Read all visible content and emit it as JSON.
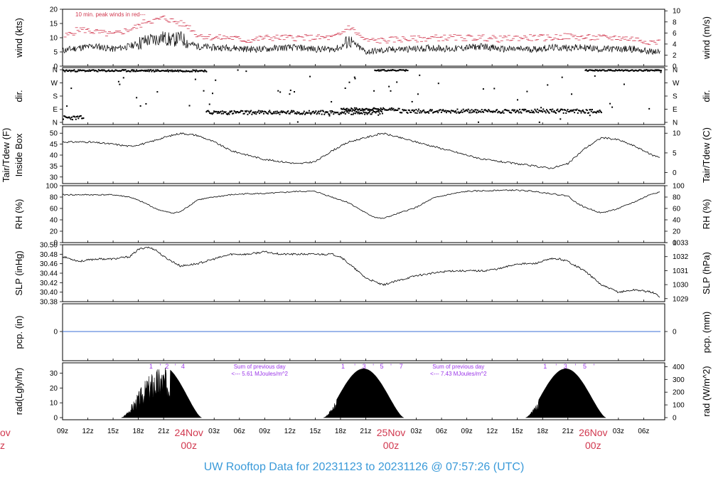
{
  "footer": {
    "title": "UW Rooftop Data for 20231123  to  20231126 @ 07:57:26  (UTC)"
  },
  "colors": {
    "accent_title": "#3a9ad9",
    "red_labels": "#d1384f",
    "purple_text": "#9a35e8",
    "pcp_line": "#3b6fd6"
  },
  "x_axis": {
    "ticks": [
      "09z",
      "12z",
      "15z",
      "18z",
      "21z",
      "03z",
      "06z",
      "09z",
      "12z",
      "15z",
      "18z",
      "21z",
      "03z",
      "06z",
      "09z",
      "12z",
      "15z",
      "18z",
      "21z",
      "03z",
      "06z"
    ],
    "ticks_hours_since_start": [
      0,
      3,
      6,
      9,
      12,
      18,
      21,
      24,
      27,
      30,
      33,
      36,
      42,
      45,
      48,
      51,
      54,
      57,
      60,
      66,
      69
    ],
    "days": [
      {
        "hour": 15,
        "label": "24Nov",
        "sub": "00z"
      },
      {
        "hour": 39,
        "label": "25Nov",
        "sub": "00z"
      },
      {
        "hour": 63,
        "label": "26Nov",
        "sub": "00z"
      }
    ],
    "left_fragment": {
      "label": "ov",
      "sub": "z"
    }
  },
  "chart_data": [
    {
      "type": "line",
      "id": "wind",
      "ylabel": "wind (kts)",
      "ylabel_right": "wind (m/s)",
      "ylim": [
        0,
        20
      ],
      "y_ticks": [
        0,
        5,
        10,
        15,
        20
      ],
      "right_ticks": [
        0,
        2,
        4,
        6,
        8,
        10
      ],
      "annotation": "10 min. peak winds in red---",
      "series": [
        {
          "x": [
            0,
            2,
            4,
            6,
            8,
            9,
            10,
            11,
            12,
            13,
            14,
            15,
            16,
            18,
            20,
            22,
            24,
            26,
            28,
            30,
            32,
            33,
            34,
            36,
            38,
            40,
            42,
            44,
            46,
            48,
            50,
            52,
            54,
            56,
            58,
            60,
            62,
            64,
            66,
            68,
            70
          ],
          "values": [
            5.5,
            6.5,
            7,
            6,
            7,
            8,
            9,
            9.5,
            10,
            9,
            10,
            8,
            7,
            6.5,
            6.5,
            6,
            6,
            6.5,
            6.5,
            6,
            6,
            6.5,
            9,
            5,
            5.5,
            6,
            6,
            6.5,
            6,
            6.5,
            7,
            6,
            6,
            6,
            6.5,
            6.5,
            6.5,
            6,
            6,
            6,
            5
          ]
        },
        {
          "x": [
            0,
            2,
            4,
            6,
            8,
            9,
            10,
            11,
            12,
            13,
            14,
            15,
            16,
            18,
            20,
            22,
            24,
            26,
            28,
            30,
            32,
            33,
            34,
            36,
            38,
            40,
            42,
            44,
            46,
            48,
            50,
            52,
            54,
            56,
            58,
            60,
            62,
            64,
            66,
            68,
            70
          ],
          "values": [
            10,
            13,
            12,
            11,
            13,
            14,
            16,
            16,
            17,
            16,
            15,
            14,
            11,
            10,
            10,
            9,
            10,
            10,
            10,
            10,
            10,
            11,
            14,
            9,
            9,
            9.5,
            9.5,
            10,
            10,
            10,
            10,
            9.5,
            10,
            10,
            10,
            10.5,
            10,
            10,
            10,
            9.5,
            8.5
          ]
        }
      ]
    },
    {
      "type": "scatter",
      "id": "dir",
      "ylabel": "dir.",
      "ylabel_right": "dir.",
      "y_ticks": [
        "N",
        "E",
        "S",
        "W",
        "N"
      ],
      "segments": [
        {
          "x0": 0,
          "x1": 2.5,
          "y": [
            0.2,
            0.5
          ]
        },
        {
          "x0": 0,
          "x1": 17,
          "y": [
            3.85,
            4.0
          ]
        },
        {
          "x0": 17,
          "x1": 38,
          "y": [
            0.6,
            0.9
          ]
        },
        {
          "x0": 33,
          "x1": 40,
          "y": [
            0.9,
            1.1
          ]
        },
        {
          "x0": 40,
          "x1": 64,
          "y": [
            0.7,
            1.0
          ]
        },
        {
          "x0": 37,
          "x1": 41,
          "y": [
            3.9,
            4.0
          ]
        },
        {
          "x0": 62,
          "x1": 71,
          "y": [
            3.9,
            4.0
          ]
        }
      ]
    },
    {
      "type": "line",
      "id": "temp",
      "ylabel": "Tair/Tdew (F)",
      "ylabel2": "Inside Box",
      "ylabel_right": "Tair/Tdew (C)",
      "ylim": [
        27,
        53
      ],
      "y_ticks": [
        30,
        35,
        40,
        45,
        50
      ],
      "right_ticks": [
        0,
        5,
        10
      ],
      "series": [
        {
          "x": [
            0,
            3,
            6,
            8,
            10,
            12,
            14,
            16,
            18,
            20,
            22,
            24,
            26,
            28,
            30,
            32,
            34,
            36,
            37,
            38,
            40,
            42,
            44,
            46,
            48,
            50,
            52,
            54,
            56,
            58,
            60,
            62,
            64,
            66,
            68,
            70,
            71
          ],
          "values": [
            46,
            46,
            45,
            44,
            45.5,
            48,
            50,
            49,
            46,
            42,
            40,
            38,
            37,
            36,
            37,
            42,
            46,
            48,
            49,
            50,
            48,
            46,
            44,
            42,
            40,
            38,
            37,
            36,
            35,
            34,
            36,
            43,
            48,
            47,
            44,
            40,
            39
          ]
        }
      ]
    },
    {
      "type": "line",
      "id": "rh",
      "ylabel": "RH (%)",
      "ylabel_right": "RH (%)",
      "ylim": [
        0,
        100
      ],
      "y_ticks": [
        0,
        20,
        40,
        60,
        80,
        100
      ],
      "right_ticks": [
        0,
        20,
        40,
        60,
        80,
        100
      ],
      "series": [
        {
          "x": [
            0,
            2,
            4,
            6,
            8,
            10,
            11,
            12,
            13,
            14,
            16,
            18,
            20,
            22,
            24,
            26,
            28,
            30,
            32,
            34,
            36,
            37,
            38,
            40,
            42,
            44,
            46,
            48,
            50,
            52,
            54,
            56,
            58,
            60,
            61,
            62,
            64,
            66,
            68,
            70,
            71
          ],
          "values": [
            84,
            84,
            84,
            84,
            80,
            68,
            60,
            55,
            52,
            54,
            75,
            80,
            84,
            86,
            86,
            88,
            90,
            90,
            80,
            70,
            52,
            45,
            42,
            52,
            62,
            78,
            85,
            90,
            91,
            92,
            92,
            90,
            86,
            82,
            70,
            62,
            52,
            60,
            72,
            86,
            89
          ]
        }
      ]
    },
    {
      "type": "line",
      "id": "slp",
      "ylabel": "SLP (inHg)",
      "ylabel_right": "SLP (hPa)",
      "ylim": [
        30.38,
        30.5
      ],
      "y_ticks": [
        30.38,
        30.4,
        30.42,
        30.44,
        30.46,
        30.48,
        30.5
      ],
      "right_ticks": [
        1029,
        1030,
        1031,
        1032,
        1033
      ],
      "series": [
        {
          "x": [
            0,
            2,
            4,
            6,
            8,
            9,
            10,
            11,
            12,
            14,
            16,
            18,
            20,
            22,
            24,
            26,
            28,
            30,
            32,
            33,
            34,
            36,
            38,
            40,
            42,
            44,
            46,
            48,
            50,
            52,
            54,
            56,
            58,
            59,
            60,
            62,
            64,
            66,
            68,
            70,
            71
          ],
          "values": [
            30.475,
            30.465,
            30.47,
            30.47,
            30.475,
            30.49,
            30.495,
            30.49,
            30.475,
            30.455,
            30.46,
            30.47,
            30.48,
            30.48,
            30.485,
            30.48,
            30.48,
            30.48,
            30.48,
            30.475,
            30.46,
            30.43,
            30.415,
            30.425,
            30.435,
            30.44,
            30.445,
            30.445,
            30.445,
            30.45,
            30.46,
            30.46,
            30.47,
            30.47,
            30.465,
            30.445,
            30.415,
            30.4,
            30.405,
            30.4,
            30.39
          ]
        }
      ]
    },
    {
      "type": "line",
      "id": "pcp",
      "ylabel": "pcp. (in)",
      "ylabel_right": "pcp. (mm)",
      "y_ticks": [
        0
      ],
      "right_ticks": [
        0
      ],
      "series": [
        {
          "x": [
            0,
            71
          ],
          "values": [
            0,
            0
          ]
        }
      ]
    },
    {
      "type": "area",
      "id": "rad",
      "ylabel": "rad(Lgly/hr)",
      "ylabel_right": "rad (W/m^2)",
      "ylim": [
        0,
        37
      ],
      "y_ticks": [
        0,
        10,
        20,
        30
      ],
      "right_ticks": [
        0,
        100,
        200,
        300,
        400
      ],
      "peaks": [
        {
          "start": 7,
          "end": 16.5,
          "peak_hour": 11.8,
          "peak": 35
        },
        {
          "start": 31,
          "end": 40.5,
          "peak_hour": 35.5,
          "peak": 33
        },
        {
          "start": 55,
          "end": 64.5,
          "peak_hour": 59.5,
          "peak": 33
        }
      ],
      "hour_marks": [
        {
          "x": 10.5,
          "text": "1"
        },
        {
          "x": 11.6,
          "text": "'"
        },
        {
          "x": 12.4,
          "text": "2"
        },
        {
          "x": 13.4,
          "text": "'"
        },
        {
          "x": 14.3,
          "text": "4"
        },
        {
          "x": 33.3,
          "text": "1"
        },
        {
          "x": 34.7,
          "text": "'"
        },
        {
          "x": 35.8,
          "text": "3"
        },
        {
          "x": 36.9,
          "text": "'"
        },
        {
          "x": 37.9,
          "text": "5"
        },
        {
          "x": 39.0,
          "text": "'"
        },
        {
          "x": 40.2,
          "text": "7"
        },
        {
          "x": 57.3,
          "text": "1"
        },
        {
          "x": 58.6,
          "text": "'"
        },
        {
          "x": 59.7,
          "text": "3"
        },
        {
          "x": 60.9,
          "text": "'"
        },
        {
          "x": 62.0,
          "text": "5"
        },
        {
          "x": 63.1,
          "text": "'"
        }
      ],
      "notes": [
        {
          "x": 23.4,
          "line1": "Sum of previous day",
          "line2": "<--- 5.61 MJoules/m^2"
        },
        {
          "x": 47.0,
          "line1": "Sum of previous day",
          "line2": "<--- 7.43 MJoules/m^2"
        }
      ]
    }
  ]
}
